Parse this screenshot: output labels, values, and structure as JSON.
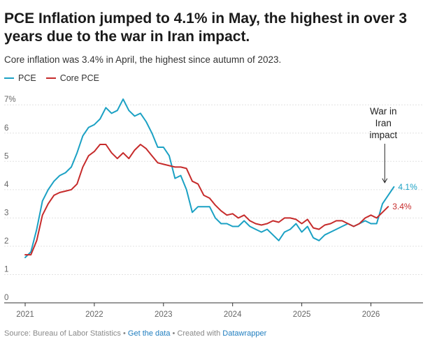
{
  "title": "PCE Inflation jumped to 4.1% in May, the highest in over 3 years due to the war in Iran impact.",
  "subtitle": "Core inflation was 3.4% in April, the highest since autumn of 2023.",
  "footer": {
    "source": "Source: Bureau of Labor Statistics",
    "sep1": "•",
    "get_data": "Get the data",
    "sep2": "•",
    "created_with": "Created with",
    "datawrapper": "Datawrapper"
  },
  "chart_data": {
    "type": "line",
    "ylim": [
      0,
      7.4
    ],
    "xlim": [
      2021.0,
      2026.45
    ],
    "ylabel": "",
    "xlabel": "",
    "y_ticks": [
      0,
      1,
      2,
      3,
      4,
      5,
      6,
      7
    ],
    "y_tick_labels": [
      "0",
      "1",
      "2",
      "3",
      "4",
      "5",
      "6",
      "7%"
    ],
    "x_ticks": [
      2021,
      2022,
      2023,
      2024,
      2025,
      2026
    ],
    "x_tick_labels": [
      "2021",
      "2022",
      "2023",
      "2024",
      "2025",
      "2026"
    ],
    "grid": true,
    "legend_position": "top-left",
    "series": [
      {
        "name": "PCE",
        "color": "#1ba1c4",
        "end_label": "4.1%",
        "x": [
          2021.0,
          2021.083,
          2021.167,
          2021.25,
          2021.333,
          2021.417,
          2021.5,
          2021.583,
          2021.667,
          2021.75,
          2021.833,
          2021.917,
          2022.0,
          2022.083,
          2022.167,
          2022.25,
          2022.333,
          2022.417,
          2022.5,
          2022.583,
          2022.667,
          2022.75,
          2022.833,
          2022.917,
          2023.0,
          2023.083,
          2023.167,
          2023.25,
          2023.333,
          2023.417,
          2023.5,
          2023.583,
          2023.667,
          2023.75,
          2023.833,
          2023.917,
          2024.0,
          2024.083,
          2024.167,
          2024.25,
          2024.333,
          2024.417,
          2024.5,
          2024.583,
          2024.667,
          2024.75,
          2024.833,
          2024.917,
          2025.0,
          2025.083,
          2025.167,
          2025.25,
          2025.333,
          2025.417,
          2025.5,
          2025.583,
          2025.667,
          2025.75,
          2025.833,
          2025.917,
          2026.0,
          2026.083,
          2026.167,
          2026.25,
          2026.333
        ],
        "values": [
          1.6,
          1.8,
          2.6,
          3.6,
          4.0,
          4.3,
          4.5,
          4.6,
          4.8,
          5.3,
          5.9,
          6.2,
          6.3,
          6.5,
          6.9,
          6.7,
          6.8,
          7.2,
          6.8,
          6.6,
          6.7,
          6.4,
          6.0,
          5.5,
          5.5,
          5.2,
          4.4,
          4.5,
          4.0,
          3.2,
          3.4,
          3.4,
          3.4,
          3.0,
          2.8,
          2.8,
          2.7,
          2.7,
          2.9,
          2.7,
          2.6,
          2.5,
          2.6,
          2.4,
          2.2,
          2.5,
          2.6,
          2.8,
          2.5,
          2.7,
          2.3,
          2.2,
          2.4,
          2.5,
          2.6,
          2.7,
          2.8,
          2.7,
          2.8,
          2.9,
          2.8,
          2.8,
          3.5,
          3.8,
          4.1
        ]
      },
      {
        "name": "Core PCE",
        "color": "#c62b2b",
        "end_label": "3.4%",
        "x": [
          2021.0,
          2021.083,
          2021.167,
          2021.25,
          2021.333,
          2021.417,
          2021.5,
          2021.583,
          2021.667,
          2021.75,
          2021.833,
          2021.917,
          2022.0,
          2022.083,
          2022.167,
          2022.25,
          2022.333,
          2022.417,
          2022.5,
          2022.583,
          2022.667,
          2022.75,
          2022.833,
          2022.917,
          2023.0,
          2023.083,
          2023.167,
          2023.25,
          2023.333,
          2023.417,
          2023.5,
          2023.583,
          2023.667,
          2023.75,
          2023.833,
          2023.917,
          2024.0,
          2024.083,
          2024.167,
          2024.25,
          2024.333,
          2024.417,
          2024.5,
          2024.583,
          2024.667,
          2024.75,
          2024.833,
          2024.917,
          2025.0,
          2025.083,
          2025.167,
          2025.25,
          2025.333,
          2025.417,
          2025.5,
          2025.583,
          2025.667,
          2025.75,
          2025.833,
          2025.917,
          2026.0,
          2026.083,
          2026.167,
          2026.25
        ],
        "values": [
          1.7,
          1.7,
          2.2,
          3.1,
          3.5,
          3.8,
          3.9,
          3.95,
          4.0,
          4.2,
          4.8,
          5.2,
          5.35,
          5.6,
          5.6,
          5.3,
          5.1,
          5.3,
          5.1,
          5.4,
          5.6,
          5.45,
          5.2,
          4.95,
          4.9,
          4.85,
          4.8,
          4.8,
          4.75,
          4.3,
          4.2,
          3.8,
          3.7,
          3.45,
          3.25,
          3.1,
          3.15,
          3.0,
          3.1,
          2.9,
          2.8,
          2.75,
          2.8,
          2.9,
          2.85,
          3.0,
          3.0,
          2.95,
          2.8,
          2.95,
          2.65,
          2.6,
          2.75,
          2.8,
          2.9,
          2.9,
          2.8,
          2.7,
          2.8,
          3.0,
          3.1,
          3.0,
          3.2,
          3.4
        ]
      }
    ],
    "annotations": [
      {
        "text_lines": [
          "War in",
          "Iran",
          "impact"
        ],
        "x": 2026.2,
        "y": 4.2
      }
    ]
  }
}
